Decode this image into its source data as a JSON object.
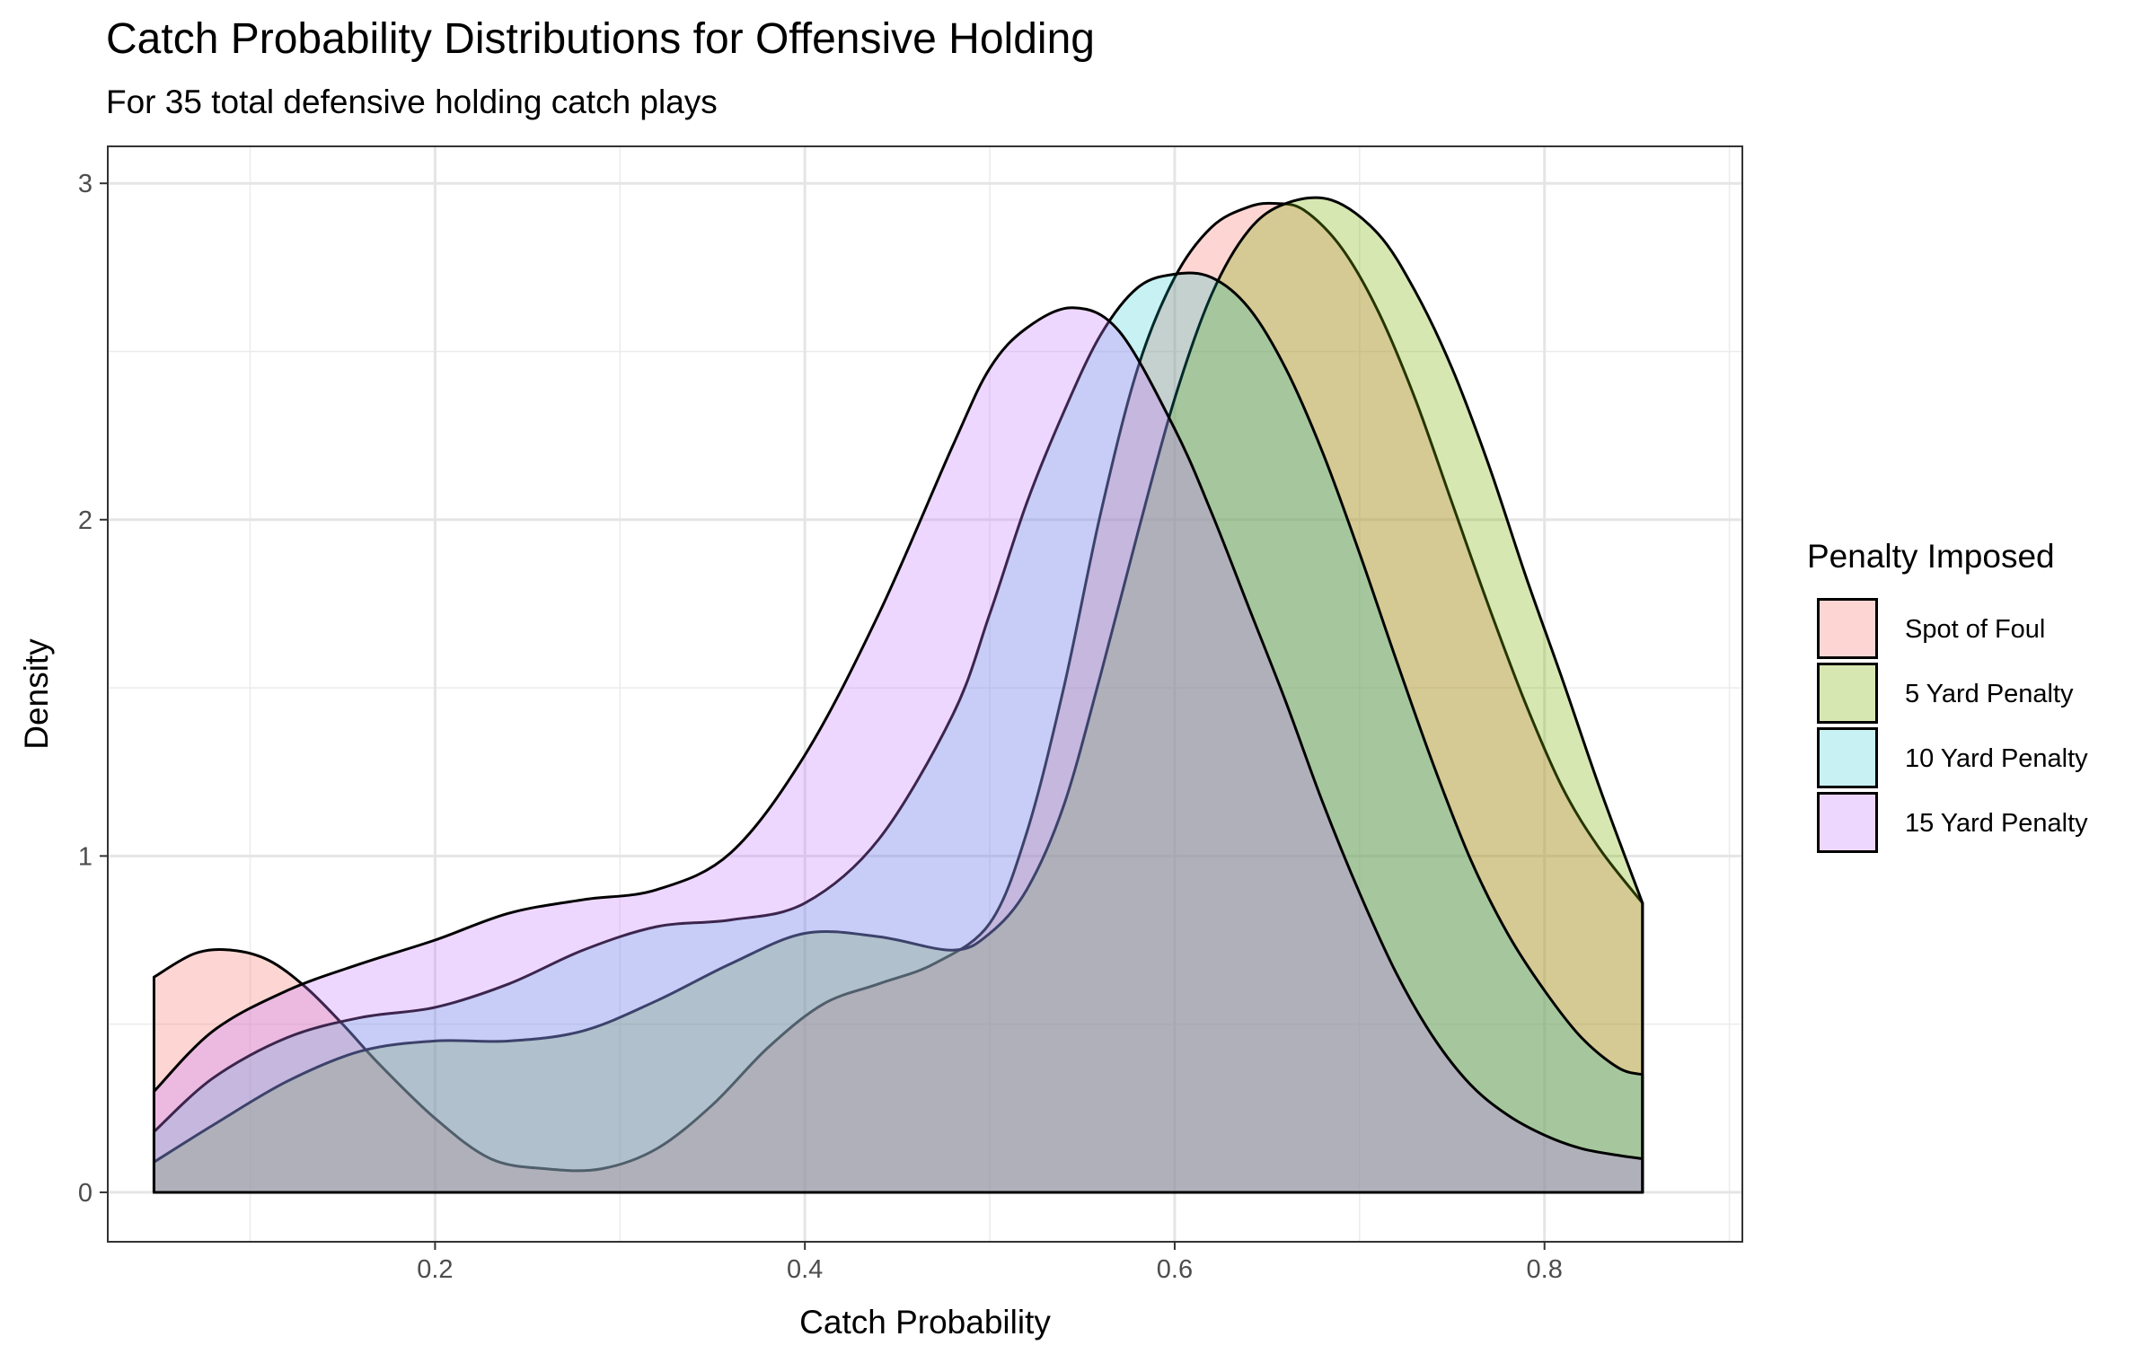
{
  "chart_data": {
    "type": "area",
    "subtype": "density",
    "title": "Catch Probability Distributions for Offensive Holding",
    "subtitle": "For 35 total defensive holding catch plays",
    "xlabel": "Catch Probability",
    "ylabel": "Density",
    "xlim": [
      0.023,
      0.907
    ],
    "ylim": [
      -0.147,
      3.11
    ],
    "x_ticks": [
      0.2,
      0.4,
      0.6,
      0.8
    ],
    "x_tick_labels": [
      "0.2",
      "0.4",
      "0.6",
      "0.8"
    ],
    "y_ticks": [
      0,
      1,
      2,
      3
    ],
    "y_tick_labels": [
      "0",
      "1",
      "2",
      "3"
    ],
    "grid": true,
    "theme": "bw",
    "legend": {
      "title": "Penalty Imposed",
      "position": "right"
    },
    "series": [
      {
        "name": "Spot of Foul",
        "color": "#F8766D",
        "opacity": 0.3,
        "x": [
          0.048,
          0.07,
          0.09,
          0.11,
          0.13,
          0.15,
          0.17,
          0.2,
          0.23,
          0.26,
          0.29,
          0.32,
          0.35,
          0.38,
          0.41,
          0.44,
          0.47,
          0.5,
          0.52,
          0.54,
          0.56,
          0.58,
          0.6,
          0.62,
          0.64,
          0.655,
          0.67,
          0.69,
          0.71,
          0.73,
          0.75,
          0.77,
          0.79,
          0.81,
          0.83,
          0.853
        ],
        "y": [
          0.64,
          0.71,
          0.72,
          0.69,
          0.61,
          0.5,
          0.38,
          0.22,
          0.1,
          0.07,
          0.07,
          0.13,
          0.26,
          0.43,
          0.56,
          0.62,
          0.68,
          0.8,
          1.07,
          1.5,
          2.02,
          2.45,
          2.72,
          2.87,
          2.93,
          2.94,
          2.92,
          2.81,
          2.62,
          2.36,
          2.05,
          1.74,
          1.45,
          1.2,
          1.02,
          0.86
        ]
      },
      {
        "name": "5 Yard Penalty",
        "color": "#7CAE00",
        "opacity": 0.3,
        "x": [
          0.048,
          0.08,
          0.12,
          0.16,
          0.2,
          0.24,
          0.28,
          0.32,
          0.36,
          0.4,
          0.44,
          0.48,
          0.5,
          0.52,
          0.54,
          0.56,
          0.58,
          0.6,
          0.62,
          0.64,
          0.66,
          0.685,
          0.71,
          0.73,
          0.75,
          0.77,
          0.79,
          0.81,
          0.83,
          0.853
        ],
        "y": [
          0.09,
          0.2,
          0.33,
          0.42,
          0.45,
          0.45,
          0.48,
          0.57,
          0.68,
          0.77,
          0.76,
          0.72,
          0.77,
          0.9,
          1.15,
          1.54,
          1.96,
          2.36,
          2.67,
          2.86,
          2.94,
          2.95,
          2.85,
          2.68,
          2.45,
          2.16,
          1.83,
          1.52,
          1.2,
          0.86
        ]
      },
      {
        "name": "10 Yard Penalty",
        "color": "#00BFC4",
        "opacity": 0.22,
        "x": [
          0.048,
          0.08,
          0.12,
          0.16,
          0.2,
          0.24,
          0.28,
          0.32,
          0.36,
          0.4,
          0.44,
          0.48,
          0.5,
          0.52,
          0.54,
          0.56,
          0.58,
          0.6,
          0.62,
          0.64,
          0.66,
          0.68,
          0.7,
          0.72,
          0.74,
          0.76,
          0.78,
          0.8,
          0.82,
          0.84,
          0.853
        ],
        "y": [
          0.18,
          0.34,
          0.46,
          0.52,
          0.55,
          0.62,
          0.72,
          0.79,
          0.81,
          0.86,
          1.05,
          1.42,
          1.72,
          2.05,
          2.32,
          2.55,
          2.69,
          2.73,
          2.72,
          2.63,
          2.45,
          2.2,
          1.9,
          1.58,
          1.27,
          0.99,
          0.77,
          0.6,
          0.46,
          0.37,
          0.35
        ]
      },
      {
        "name": "15 Yard Penalty",
        "color": "#C77CFF",
        "opacity": 0.3,
        "x": [
          0.048,
          0.08,
          0.12,
          0.16,
          0.2,
          0.24,
          0.28,
          0.32,
          0.36,
          0.4,
          0.44,
          0.48,
          0.5,
          0.52,
          0.545,
          0.57,
          0.6,
          0.62,
          0.64,
          0.66,
          0.68,
          0.7,
          0.72,
          0.74,
          0.76,
          0.78,
          0.8,
          0.82,
          0.84,
          0.853
        ],
        "y": [
          0.3,
          0.48,
          0.6,
          0.68,
          0.75,
          0.83,
          0.87,
          0.9,
          1.01,
          1.3,
          1.72,
          2.22,
          2.45,
          2.57,
          2.63,
          2.56,
          2.27,
          2.02,
          1.74,
          1.46,
          1.16,
          0.89,
          0.65,
          0.46,
          0.32,
          0.23,
          0.17,
          0.13,
          0.11,
          0.1
        ]
      }
    ]
  }
}
